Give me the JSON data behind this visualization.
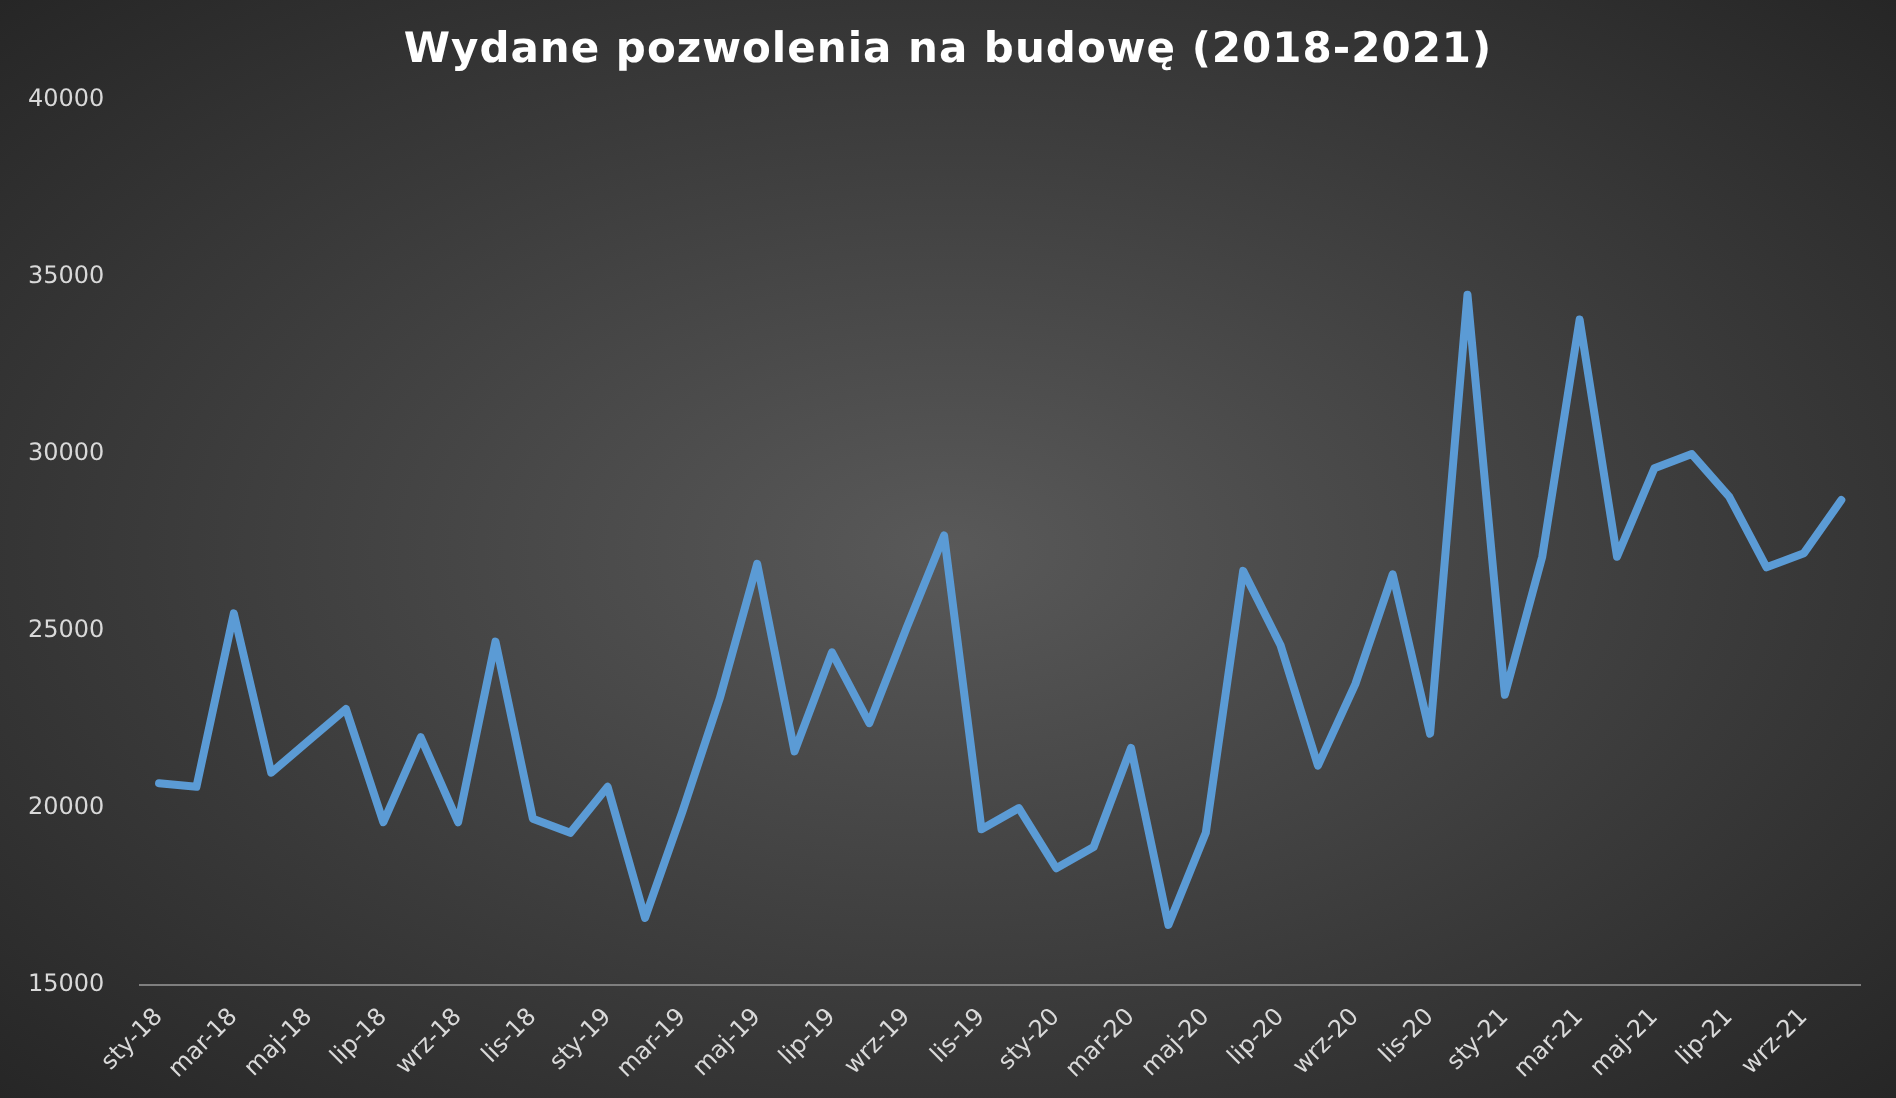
{
  "chart_data": {
    "type": "line",
    "title": "Wydane pozwolenia na budowę (2018-2021)",
    "categories": [
      "sty-18",
      null,
      "mar-18",
      null,
      "maj-18",
      null,
      "lip-18",
      null,
      "wrz-18",
      null,
      "lis-18",
      null,
      "sty-19",
      null,
      "mar-19",
      null,
      "maj-19",
      null,
      "lip-19",
      null,
      "wrz-19",
      null,
      "lis-19",
      null,
      "sty-20",
      null,
      "mar-20",
      null,
      "maj-20",
      null,
      "lip-20",
      null,
      "wrz-20",
      null,
      "lis-20",
      null,
      "sty-21",
      null,
      "mar-21",
      null,
      "maj-21",
      null,
      "lip-21",
      null,
      "wrz-21",
      null
    ],
    "series": [
      {
        "color": "#5b9bd5",
        "values": [
          20700,
          20600,
          25500,
          21000,
          21900,
          22800,
          19600,
          22000,
          19600,
          24700,
          19700,
          19300,
          20600,
          16900,
          19900,
          23100,
          26900,
          21600,
          24400,
          22400,
          25100,
          27700,
          19400,
          20000,
          18300,
          18900,
          21700,
          16700,
          19300,
          26700,
          24600,
          21200,
          23500,
          26600,
          22100,
          34500,
          23200,
          27100,
          33800,
          27100,
          29600,
          30000,
          28800,
          26800,
          27200,
          28700
        ]
      }
    ],
    "ylim": [
      15000,
      40000
    ],
    "yticks": [
      15000,
      20000,
      25000,
      30000,
      35000,
      40000
    ],
    "grid": false,
    "legend": false,
    "marker": "none",
    "line_style": "solid"
  }
}
